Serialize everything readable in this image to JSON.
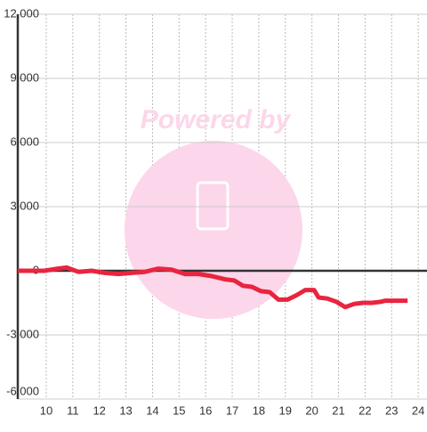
{
  "chart_data": {
    "type": "line",
    "watermark": "Powered by",
    "x": [
      8.93,
      9.93,
      10.44,
      10.77,
      11.21,
      11.71,
      12.21,
      12.71,
      13.21,
      13.72,
      14.22,
      14.72,
      15.22,
      15.73,
      16.23,
      16.73,
      17.07,
      17.4,
      17.74,
      18.07,
      18.41,
      18.74,
      19.08,
      19.41,
      19.75,
      20.08,
      20.25,
      20.58,
      20.92,
      21.25,
      21.59,
      21.92,
      22.26,
      22.59,
      22.76,
      23.6
    ],
    "series": [
      {
        "color": "#e8253f",
        "values": [
          0,
          0,
          100,
          150,
          -50,
          0,
          -100,
          -150,
          -100,
          -50,
          100,
          50,
          -150,
          -150,
          -250,
          -400,
          -450,
          -700,
          -750,
          -950,
          -1000,
          -1350,
          -1350,
          -1150,
          -900,
          -900,
          -1250,
          -1300,
          -1450,
          -1700,
          -1550,
          -1500,
          -1500,
          -1450,
          -1400,
          -1400
        ]
      }
    ],
    "xlim": [
      8.93,
      24.33
    ],
    "xticks": [
      10,
      11,
      12,
      13,
      14,
      15,
      16,
      17,
      18,
      19,
      20,
      21,
      22,
      23,
      24
    ],
    "ylim": [
      -6000,
      12000
    ],
    "yticks": [
      {
        "value": -6000,
        "label": "-6,000"
      },
      {
        "value": -3000,
        "label": "-3,000"
      },
      0,
      {
        "value": 3000,
        "label": "3,000"
      },
      {
        "value": 6000,
        "label": "6,000"
      },
      {
        "value": 9000,
        "label": "9,000"
      },
      {
        "value": 12000,
        "label": "12,000"
      }
    ],
    "grid": true
  }
}
